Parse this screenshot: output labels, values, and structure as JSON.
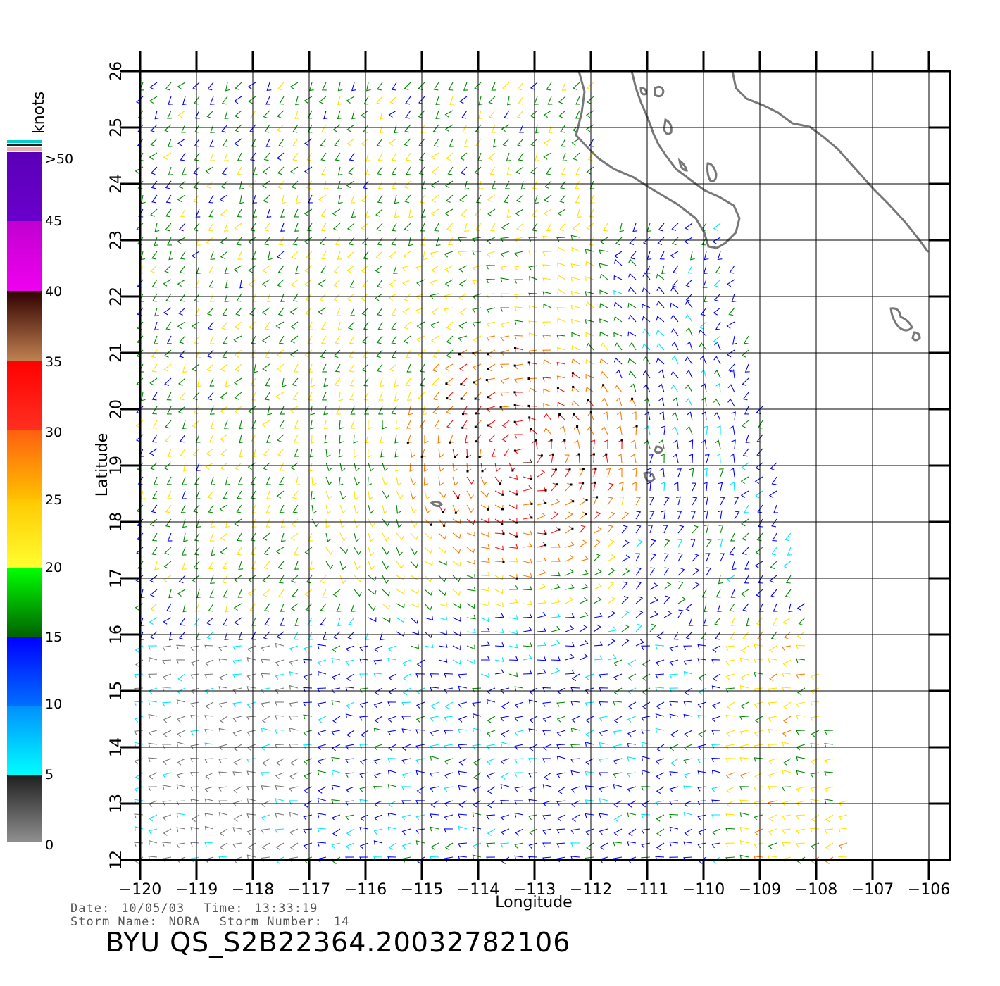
{
  "map": {
    "x_axis_title": "Longitude",
    "y_axis_title": "Latitude",
    "lon_range": [
      -120,
      -106
    ],
    "lat_range": [
      12,
      26
    ],
    "lon_ticks": [
      "-120",
      "-119",
      "-118",
      "-117",
      "-116",
      "-115",
      "-114",
      "-113",
      "-112",
      "-111",
      "-110",
      "-109",
      "-108",
      "-107",
      "-106"
    ],
    "lat_ticks": [
      "12",
      "13",
      "14",
      "15",
      "16",
      "17",
      "18",
      "19",
      "20",
      "21",
      "22",
      "23",
      "24",
      "25",
      "26"
    ],
    "grid": true,
    "storm_center": {
      "lon": -113.2,
      "lat": 19.2
    },
    "coast_color": "#777777",
    "grid_color": "#000000"
  },
  "legend": {
    "unit_label": "knots",
    "labels": [
      ">50",
      "45",
      "40",
      "35",
      "30",
      "25",
      "20",
      "15",
      "10",
      "5",
      "0"
    ],
    "colors": {
      "0_5": "#777777",
      "5_10": "#00e5ff",
      "10_15": "#0000ff",
      "15_20": "#008800",
      "20_25": "#ffe000",
      "25_30": "#ff7a00",
      "30_35": "#ff1010",
      "35_40": "#4a1a10",
      "40_45": "#f000f0",
      "45_50": "#6a00cc"
    }
  },
  "metadata": {
    "date_label": "Date:",
    "date": "10/05/03",
    "time_label": "Time:",
    "time": "13:33:19",
    "storm_name_label": "Storm Name:",
    "storm_name": "NORA",
    "storm_number_label": "Storm Number:",
    "storm_number": "14",
    "title": "BYU QS_S2B22364.20032782106"
  }
}
